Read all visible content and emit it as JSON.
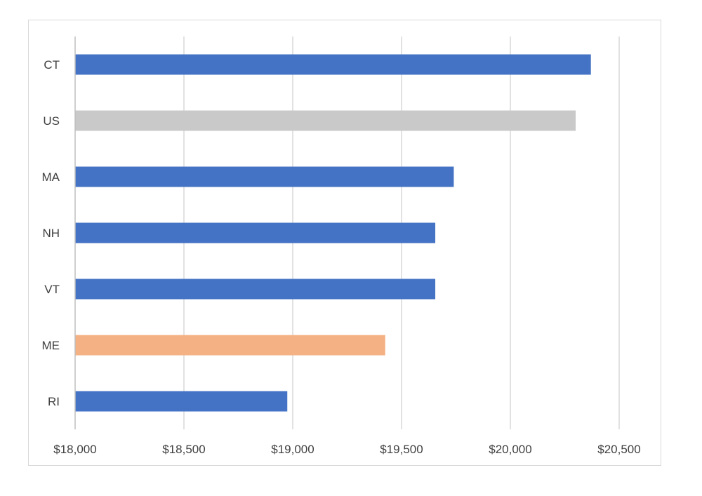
{
  "chart_data": {
    "type": "bar",
    "orientation": "horizontal",
    "categories": [
      "CT",
      "US",
      "MA",
      "NH",
      "VT",
      "ME",
      "RI"
    ],
    "values": [
      20370,
      20300,
      19740,
      19655,
      19655,
      19425,
      18975
    ],
    "bar_colors": [
      "#4472C4",
      "#C9C9C9",
      "#4472C4",
      "#4472C4",
      "#4472C4",
      "#F4B183",
      "#4472C4"
    ],
    "xlim": [
      18000,
      20500
    ],
    "x_ticks": [
      18000,
      18500,
      19000,
      19500,
      20000,
      20500
    ],
    "x_tick_labels": [
      "$18,000",
      "$18,500",
      "$19,000",
      "$19,500",
      "$20,000",
      "$20,500"
    ],
    "grid": "vertical",
    "gridline_color": "#d9d9d9",
    "axis_color": "#bfbfbf",
    "legend": "none"
  }
}
